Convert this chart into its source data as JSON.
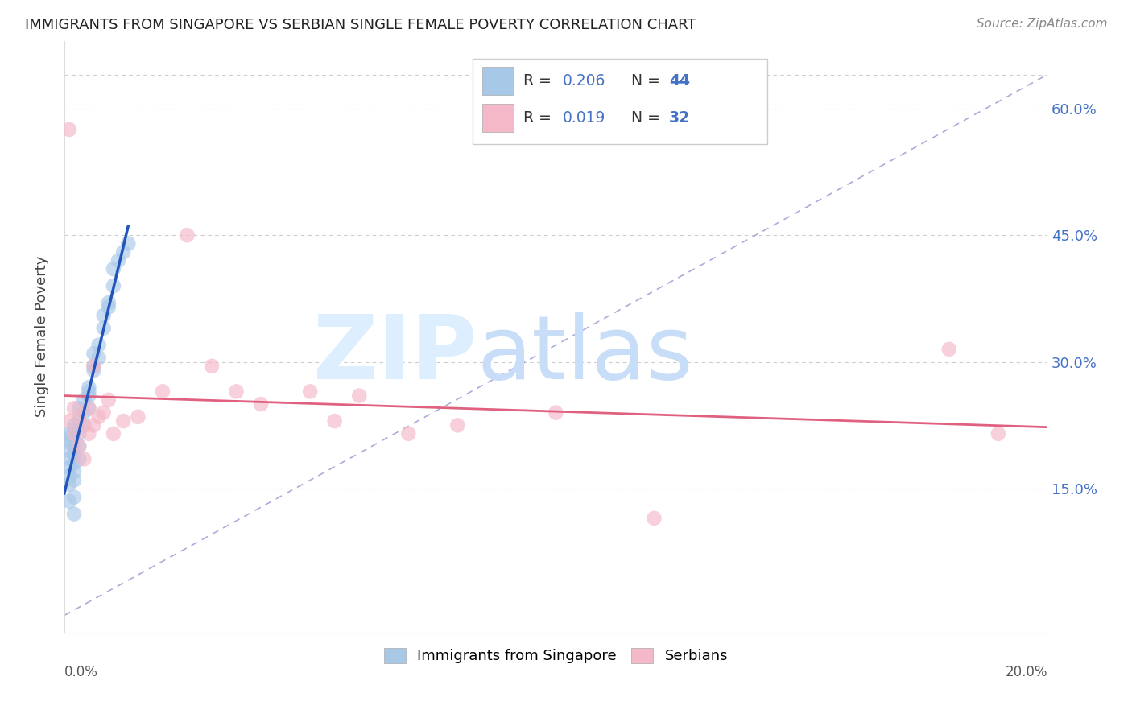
{
  "title": "IMMIGRANTS FROM SINGAPORE VS SERBIAN SINGLE FEMALE POVERTY CORRELATION CHART",
  "source": "Source: ZipAtlas.com",
  "ylabel": "Single Female Poverty",
  "xlim": [
    0.0,
    0.2
  ],
  "ylim": [
    -0.02,
    0.68
  ],
  "yticks": [
    0.0,
    0.15,
    0.3,
    0.45,
    0.6
  ],
  "ytick_labels": [
    "",
    "15.0%",
    "30.0%",
    "45.0%",
    "60.0%"
  ],
  "legend_r1": "0.206",
  "legend_n1": "44",
  "legend_r2": "0.019",
  "legend_n2": "32",
  "color_blue": "#a8c8e8",
  "color_pink": "#f4b8c8",
  "color_blue_line": "#2255bb",
  "color_pink_line": "#e06080",
  "color_dashed": "#aaaacc",
  "legend_label1": "Immigrants from Singapore",
  "legend_label2": "Serbians",
  "singapore_x": [
    0.001,
    0.001,
    0.001,
    0.001,
    0.001,
    0.001,
    0.001,
    0.001,
    0.001,
    0.002,
    0.002,
    0.002,
    0.002,
    0.002,
    0.002,
    0.002,
    0.002,
    0.002,
    0.003,
    0.003,
    0.003,
    0.003,
    0.003,
    0.004,
    0.004,
    0.004,
    0.005,
    0.005,
    0.005,
    0.005,
    0.006,
    0.006,
    0.006,
    0.007,
    0.007,
    0.008,
    0.008,
    0.009,
    0.009,
    0.01,
    0.01,
    0.011,
    0.012,
    0.013
  ],
  "singapore_y": [
    0.205,
    0.21,
    0.195,
    0.215,
    0.185,
    0.175,
    0.165,
    0.155,
    0.135,
    0.225,
    0.22,
    0.2,
    0.19,
    0.18,
    0.17,
    0.16,
    0.14,
    0.12,
    0.245,
    0.23,
    0.215,
    0.2,
    0.185,
    0.255,
    0.24,
    0.225,
    0.265,
    0.27,
    0.26,
    0.245,
    0.29,
    0.31,
    0.295,
    0.32,
    0.305,
    0.34,
    0.355,
    0.37,
    0.365,
    0.39,
    0.41,
    0.42,
    0.43,
    0.44
  ],
  "serbian_x": [
    0.001,
    0.001,
    0.002,
    0.002,
    0.003,
    0.003,
    0.004,
    0.004,
    0.005,
    0.005,
    0.006,
    0.006,
    0.007,
    0.008,
    0.009,
    0.01,
    0.012,
    0.015,
    0.02,
    0.025,
    0.03,
    0.035,
    0.04,
    0.05,
    0.055,
    0.06,
    0.07,
    0.08,
    0.1,
    0.12,
    0.18,
    0.19
  ],
  "serbian_y": [
    0.23,
    0.575,
    0.245,
    0.215,
    0.235,
    0.2,
    0.225,
    0.185,
    0.245,
    0.215,
    0.295,
    0.225,
    0.235,
    0.24,
    0.255,
    0.215,
    0.23,
    0.235,
    0.265,
    0.45,
    0.295,
    0.265,
    0.25,
    0.265,
    0.23,
    0.26,
    0.215,
    0.225,
    0.24,
    0.115,
    0.315,
    0.215
  ]
}
